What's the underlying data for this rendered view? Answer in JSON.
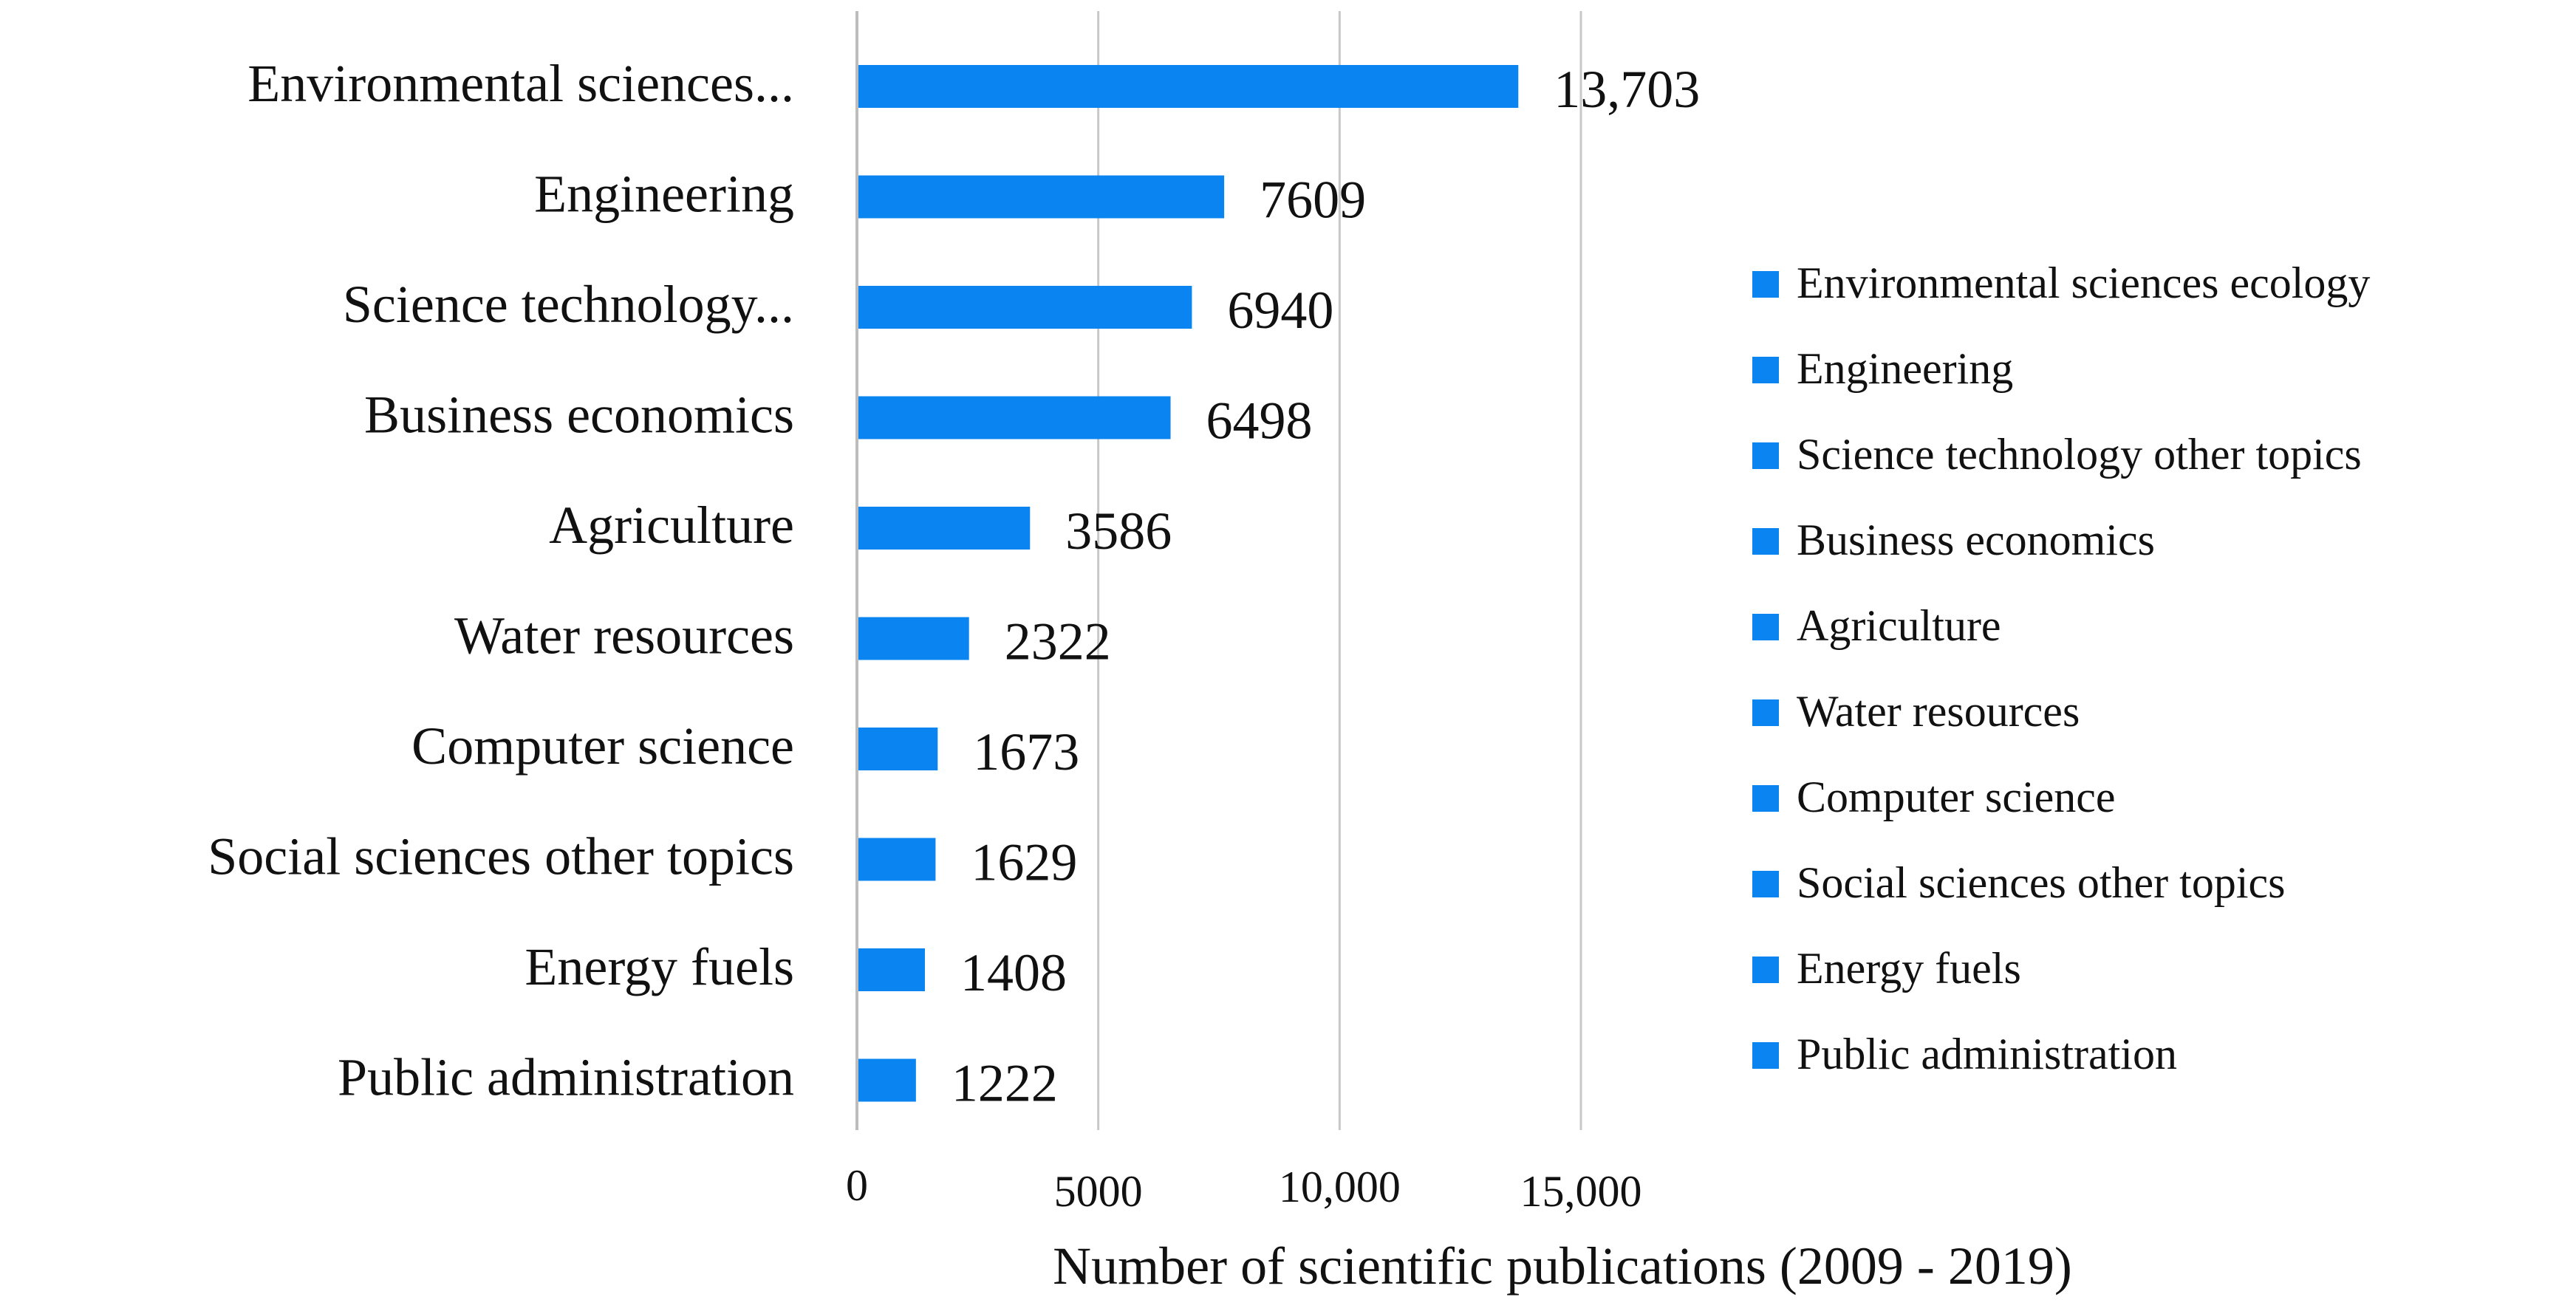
{
  "chart_data": {
    "type": "bar",
    "orientation": "horizontal",
    "title": "",
    "xlabel": "Number of scientific publications (2009 - 2019)",
    "ylabel": "",
    "xlim": [
      0,
      15000
    ],
    "xticks": [
      0,
      5000,
      10000,
      15000
    ],
    "xtick_labels": [
      "0",
      "5000",
      "10,000",
      "15,000"
    ],
    "grid": true,
    "legend_position": "right",
    "categories": [
      "Environmental sciences...",
      "Engineering",
      "Science technology...",
      "Business economics",
      "Agriculture",
      "Water resources",
      "Computer science",
      "Social sciences other topics",
      "Energy fuels",
      "Public administration"
    ],
    "values": [
      13703,
      7609,
      6940,
      6498,
      3586,
      2322,
      1673,
      1629,
      1408,
      1222
    ],
    "value_labels": [
      "13,703",
      "7609",
      "6940",
      "6498",
      "3586",
      "2322",
      "1673",
      "1629",
      "1408",
      "1222"
    ],
    "legend": [
      "Environmental sciences ecology",
      "Engineering",
      "Science technology other topics",
      "Business economics",
      "Agriculture",
      "Water resources",
      "Computer science",
      "Social sciences other topics",
      "Energy fuels",
      "Public administration"
    ],
    "bar_color": "#0a84f0",
    "grid_color": "#c8c8c8",
    "axis_color": "#bdbdbd"
  }
}
